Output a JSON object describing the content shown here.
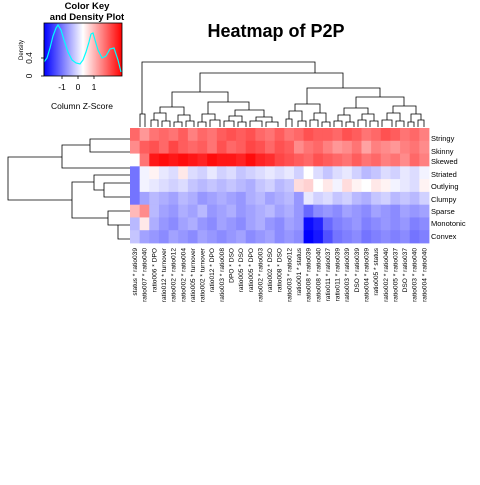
{
  "chart_data": {
    "type": "heatmap",
    "title": "Heatmap of P2P",
    "color_key": {
      "title_line1": "Color Key",
      "title_line2": "and Density Plot",
      "xlabel": "Column Z-Score",
      "ylabel": "Density",
      "x_ticks": [
        "-1",
        "0",
        "1"
      ],
      "y_ticks": [
        "0",
        "0.4"
      ],
      "colors": {
        "low": "#0000ff",
        "mid": "#ffffff",
        "high": "#ff0000",
        "density_line": "#00ffff"
      }
    },
    "rows": [
      "Stringy",
      "Skinny",
      "Skewed",
      "Striated",
      "Outlying",
      "Clumpy",
      "Sparse",
      "Monotonic",
      "Convex"
    ],
    "columns": [
      "status * ratio039",
      "ratio007 * ratio040",
      "ratio006 * DPO",
      "ratio012 * turnover",
      "ratio002 * ratio012",
      "ratio002 * ratio004",
      "ratio005 * turnover",
      "ratio002 * turnover",
      "ratio012 * DPO",
      "ratio003 * ratio008",
      "DPO * DSO",
      "ratio005 * DSO",
      "ratio005 * DPO",
      "ratio002 * ratio003",
      "ratio002 * DSO",
      "ratio008 * DSO",
      "ratio003 * ratio012",
      "ratio001 * status",
      "ratio008 * ratio039",
      "ratio008 * ratio040",
      "ratio011 * ratio037",
      "ratio011 * ratio039",
      "ratio003 * ratio039",
      "DSO * ratio039",
      "ratio004 * ratio039",
      "ratio005 * status",
      "ratio002 * ratio040",
      "ratio005 * ratio037",
      "DSO * ratio037",
      "ratio003 * ratio040",
      "ratio004 * ratio040"
    ],
    "values": [
      [
        1.3,
        0.9,
        1.2,
        1.3,
        1.2,
        1.4,
        1.1,
        1.3,
        1.2,
        1.4,
        1.5,
        1.4,
        1.5,
        1.3,
        1.2,
        1.4,
        1.2,
        1.3,
        1.5,
        1.4,
        1.4,
        1.3,
        1.5,
        1.4,
        1.2,
        1.3,
        1.5,
        1.4,
        1.2,
        1.3,
        1.1
      ],
      [
        1.0,
        1.4,
        1.5,
        1.3,
        1.6,
        1.4,
        1.3,
        1.4,
        1.2,
        1.5,
        1.3,
        1.4,
        1.6,
        1.5,
        1.3,
        1.5,
        1.4,
        1.0,
        1.2,
        1.3,
        1.1,
        0.9,
        1.0,
        1.2,
        0.8,
        1.1,
        1.0,
        0.9,
        1.1,
        1.2,
        1.0
      ],
      [
        0.0,
        1.2,
        2.0,
        2.1,
        2.0,
        2.1,
        2.0,
        1.9,
        2.1,
        2.0,
        2.0,
        1.9,
        2.1,
        1.9,
        1.8,
        1.6,
        1.5,
        1.4,
        1.3,
        1.5,
        1.4,
        1.3,
        1.2,
        1.4,
        1.2,
        1.3,
        1.1,
        1.2,
        1.0,
        1.3,
        1.1
      ],
      [
        -1.2,
        -0.1,
        0.1,
        -0.2,
        -0.3,
        0.2,
        -0.3,
        -0.4,
        -0.2,
        -0.4,
        -0.3,
        -0.5,
        -0.4,
        -0.3,
        -0.2,
        -0.3,
        -0.2,
        -0.4,
        0.0,
        -0.3,
        -0.5,
        -0.3,
        -0.2,
        -0.4,
        -0.6,
        -0.5,
        -0.3,
        -0.4,
        -0.2,
        -0.3,
        -0.1
      ],
      [
        -1.2,
        -0.1,
        -0.2,
        -0.3,
        -0.4,
        -0.3,
        -0.5,
        -0.6,
        -0.5,
        -0.6,
        -0.5,
        -0.6,
        -0.7,
        -0.5,
        -0.4,
        -0.6,
        -0.5,
        0.3,
        0.4,
        0.0,
        0.2,
        -0.1,
        0.3,
        0.1,
        0.0,
        0.2,
        0.1,
        -0.1,
        -0.2,
        -0.3,
        0.1
      ],
      [
        -1.2,
        -0.8,
        -0.6,
        -0.7,
        -0.8,
        -0.6,
        -0.7,
        -0.9,
        -0.8,
        -0.7,
        -0.8,
        -0.9,
        -0.7,
        -0.6,
        -0.8,
        -0.7,
        -0.6,
        -0.9,
        -0.2,
        -0.4,
        -0.3,
        -0.5,
        -0.4,
        -0.6,
        -0.7,
        -0.5,
        -0.4,
        -0.6,
        -0.5,
        -0.6,
        -0.4
      ],
      [
        0.6,
        1.0,
        -0.6,
        -0.8,
        -0.9,
        -0.7,
        -0.8,
        -0.6,
        -0.9,
        -0.8,
        -0.7,
        -0.9,
        -0.8,
        -0.7,
        -0.6,
        -0.8,
        -0.7,
        -0.9,
        -1.3,
        -1.0,
        -0.9,
        -1.0,
        -0.8,
        -0.9,
        -1.0,
        -0.8,
        -0.9,
        -1.0,
        -0.8,
        -0.9,
        -0.8
      ],
      [
        -0.6,
        0.2,
        -0.7,
        -0.9,
        -1.0,
        -0.8,
        -0.7,
        -0.9,
        -1.0,
        -0.8,
        -0.9,
        -1.0,
        -0.8,
        -0.7,
        -0.9,
        -1.0,
        -0.8,
        -0.9,
        -2.1,
        -1.9,
        -1.3,
        -1.1,
        -1.0,
        -0.9,
        -1.1,
        -1.0,
        -0.9,
        -1.0,
        -0.9,
        -1.1,
        -1.0
      ],
      [
        -0.5,
        -0.8,
        -0.9,
        -1.0,
        -0.8,
        -0.9,
        -1.0,
        -0.8,
        -0.9,
        -1.0,
        -0.9,
        -0.8,
        -1.0,
        -0.9,
        -0.8,
        -1.0,
        -0.9,
        -1.0,
        -2.2,
        -2.0,
        -1.5,
        -1.2,
        -1.1,
        -1.0,
        -1.2,
        -1.1,
        -1.0,
        -1.1,
        -1.0,
        -1.2,
        -1.1
      ]
    ]
  }
}
